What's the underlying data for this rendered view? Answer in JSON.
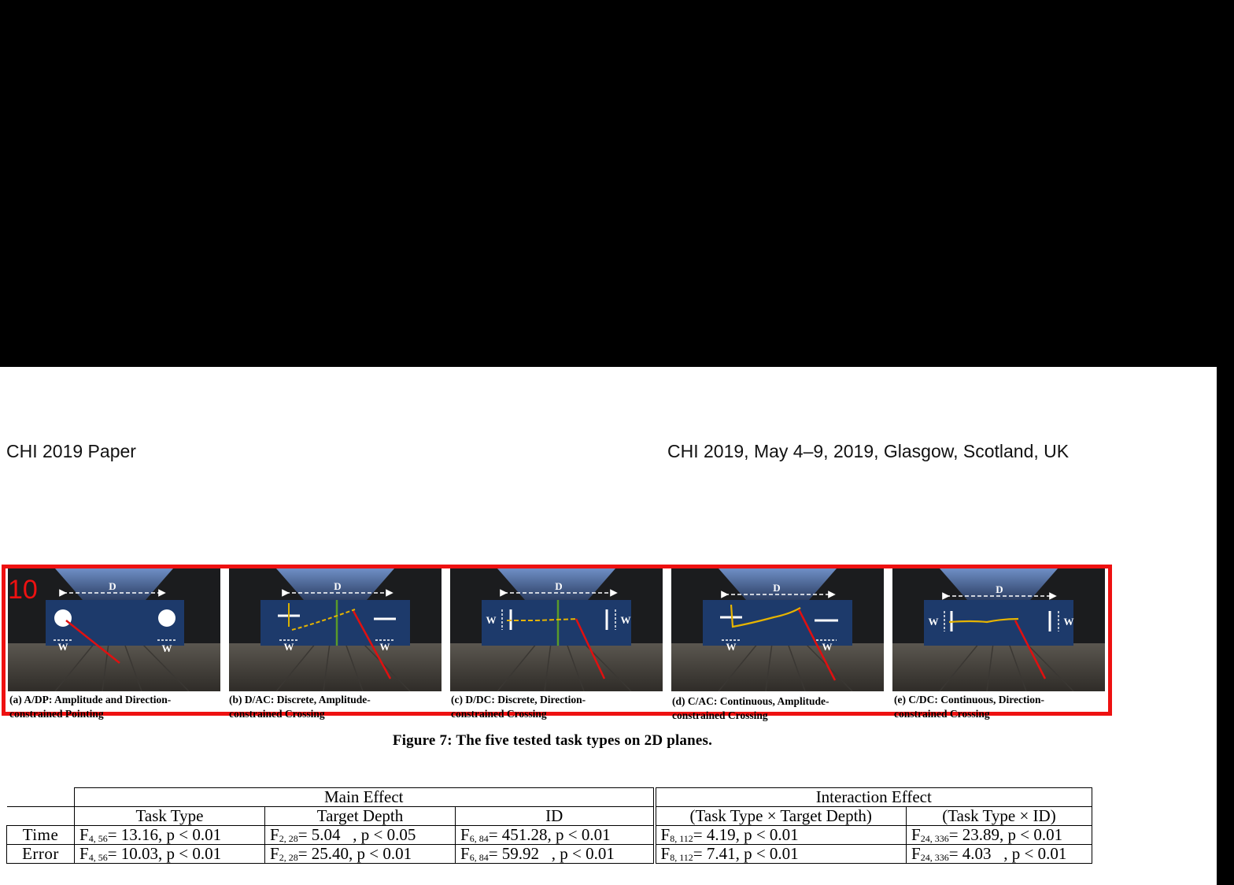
{
  "header": {
    "left": "CHI 2019 Paper",
    "right": "CHI 2019, May 4–9, 2019, Glasgow, Scotland, UK"
  },
  "figure": {
    "badge": "10",
    "caption": "Figure 7: The five tested task types on 2D planes.",
    "panels": [
      {
        "id": "a",
        "caption_line1": "(a) A/DP: Amplitude and Direction-",
        "caption_line2": "constrained Pointing",
        "label_d": "D",
        "label_w1": "W",
        "label_w2": "W"
      },
      {
        "id": "b",
        "caption_line1": "(b) D/AC: Discrete, Amplitude-",
        "caption_line2": "constrained Crossing",
        "label_d": "D",
        "label_w1": "W",
        "label_w2": "W"
      },
      {
        "id": "c",
        "caption_line1": "(c) D/DC: Discrete, Direction-",
        "caption_line2": "constrained Crossing",
        "label_d": "D",
        "label_w1": "W",
        "label_w2": "W"
      },
      {
        "id": "d",
        "caption_line1": "(d) C/AC: Continuous, Amplitude-",
        "caption_line2": "constrained Crossing",
        "label_d": "D",
        "label_w1": "W",
        "label_w2": "W"
      },
      {
        "id": "e",
        "caption_line1": "(e) C/DC: Continuous, Direction-",
        "caption_line2": "constrained Crossing",
        "label_d": "D",
        "label_w1": "W",
        "label_w2": "W"
      }
    ]
  },
  "table": {
    "group_main": "Main Effect",
    "group_interaction": "Interaction Effect",
    "columns": [
      "Task Type",
      "Target Depth",
      "ID",
      "(Task Type × Target Depth)",
      "(Task Type × ID)"
    ],
    "rows": [
      {
        "label": "Time",
        "cells": [
          {
            "F": "F",
            "df": "4, 56",
            "rest": "= 13.16, p < 0.01"
          },
          {
            "F": "F",
            "df": "2, 28",
            "rest": "= 5.04   , p < 0.05"
          },
          {
            "F": "F",
            "df": "6, 84",
            "rest": "= 451.28, p < 0.01"
          },
          {
            "F": "F",
            "df": "8, 112",
            "rest": "= 4.19, p < 0.01"
          },
          {
            "F": "F",
            "df": "24, 336",
            "rest": "= 23.89, p < 0.01"
          }
        ]
      },
      {
        "label": "Error",
        "cells": [
          {
            "F": "F",
            "df": "4, 56",
            "rest": "= 10.03, p < 0.01"
          },
          {
            "F": "F",
            "df": "2, 28",
            "rest": "= 25.40, p < 0.01"
          },
          {
            "F": "F",
            "df": "6, 84",
            "rest": "= 59.92   , p < 0.01"
          },
          {
            "F": "F",
            "df": "8, 112",
            "rest": "= 7.41, p < 0.01"
          },
          {
            "F": "F",
            "df": "24, 336",
            "rest": "= 4.03   , p < 0.01"
          }
        ]
      }
    ]
  }
}
